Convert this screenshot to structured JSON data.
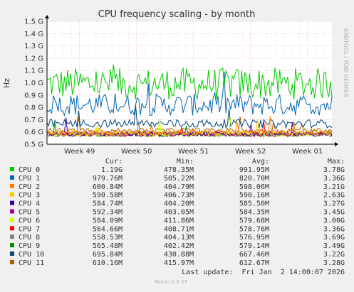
{
  "chart_data": {
    "type": "line",
    "title": "CPU frequency scaling - by month",
    "ylabel": "Hz",
    "watermark": "RRDTOOL / TOBI OETIKER",
    "ylim": [
      0.5,
      1.5
    ],
    "yticks": [
      {
        "value": 0.5,
        "label": "0.5 G"
      },
      {
        "value": 0.6,
        "label": "0.6 G"
      },
      {
        "value": 0.7,
        "label": "0.7 G"
      },
      {
        "value": 0.8,
        "label": "0.8 G"
      },
      {
        "value": 0.9,
        "label": "0.9 G"
      },
      {
        "value": 1.0,
        "label": "1.0 G"
      },
      {
        "value": 1.1,
        "label": "1.1 G"
      },
      {
        "value": 1.2,
        "label": "1.2 G"
      },
      {
        "value": 1.3,
        "label": "1.3 G"
      },
      {
        "value": 1.4,
        "label": "1.4 G"
      },
      {
        "value": 1.5,
        "label": "1.5 G"
      }
    ],
    "xlim": [
      0,
      35
    ],
    "xticks": [
      {
        "value": 4,
        "label": "Week 49"
      },
      {
        "value": 11,
        "label": "Week 50"
      },
      {
        "value": 18,
        "label": "Week 51"
      },
      {
        "value": 25,
        "label": "Week 52"
      },
      {
        "value": 32,
        "label": "Week 01"
      }
    ],
    "grid": true,
    "legend_columns": [
      "Cur:",
      "Min:",
      "Avg:",
      "Max:"
    ],
    "series": [
      {
        "name": "CPU 0",
        "color": "#00cc00",
        "cur": "1.19G",
        "min": "478.35M",
        "avg": "991.95M",
        "max": "3.78G"
      },
      {
        "name": "CPU 1",
        "color": "#0066b3",
        "cur": "979.76M",
        "min": "505.22M",
        "avg": "820.70M",
        "max": "3.36G"
      },
      {
        "name": "CPU 2",
        "color": "#ff8000",
        "cur": "600.84M",
        "min": "404.79M",
        "avg": "598.06M",
        "max": "3.21G"
      },
      {
        "name": "CPU 3",
        "color": "#ffcc00",
        "cur": "590.58M",
        "min": "406.73M",
        "avg": "590.16M",
        "max": "2.63G"
      },
      {
        "name": "CPU 4",
        "color": "#330099",
        "cur": "584.74M",
        "min": "404.20M",
        "avg": "585.50M",
        "max": "3.27G"
      },
      {
        "name": "CPU 5",
        "color": "#990099",
        "cur": "592.34M",
        "min": "403.05M",
        "avg": "584.35M",
        "max": "3.45G"
      },
      {
        "name": "CPU 6",
        "color": "#ccff00",
        "cur": "584.09M",
        "min": "411.86M",
        "avg": "579.68M",
        "max": "3.00G"
      },
      {
        "name": "CPU 7",
        "color": "#ff0000",
        "cur": "564.66M",
        "min": "408.71M",
        "avg": "578.76M",
        "max": "3.36G"
      },
      {
        "name": "CPU 8",
        "color": "#808080",
        "cur": "558.53M",
        "min": "404.13M",
        "avg": "576.95M",
        "max": "3.69G"
      },
      {
        "name": "CPU 9",
        "color": "#008f00",
        "cur": "565.48M",
        "min": "402.42M",
        "avg": "579.14M",
        "max": "3.49G"
      },
      {
        "name": "CPU 10",
        "color": "#00487d",
        "cur": "695.84M",
        "min": "430.88M",
        "avg": "667.46M",
        "max": "3.22G"
      },
      {
        "name": "CPU 11",
        "color": "#b35a00",
        "cur": "610.16M",
        "min": "415.97M",
        "avg": "612.67M",
        "max": "3.28G"
      }
    ],
    "last_update": "Last update:  Fri Jan  2 14:00:07 2026",
    "footer": "Munin 2.0.57"
  }
}
